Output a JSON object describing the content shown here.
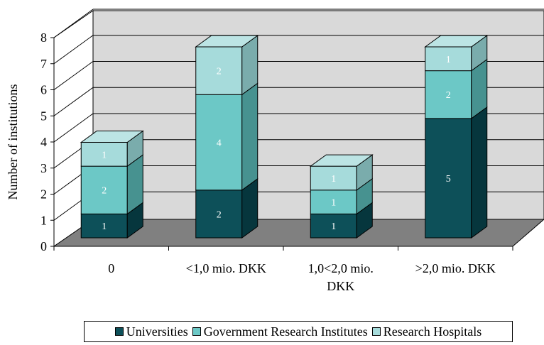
{
  "chart_data": {
    "type": "bar",
    "stacked": true,
    "three_d": true,
    "ylabel": "Number of institutions",
    "ylim": [
      0,
      8
    ],
    "yticks": [
      0,
      1,
      2,
      3,
      4,
      5,
      6,
      7,
      8
    ],
    "grid": true,
    "legend_position": "bottom",
    "categories": [
      [
        "0"
      ],
      [
        "<1,0 mio. DKK"
      ],
      [
        "1,0<2,0 mio.",
        "DKK"
      ],
      [
        ">2,0 mio. DKK"
      ]
    ],
    "series": [
      {
        "name": "Universities",
        "values": [
          1,
          2,
          1,
          5
        ],
        "color": "#0d5059",
        "side": "#06363d",
        "top": "#2e6e76"
      },
      {
        "name": "Government Research Institutes",
        "values": [
          2,
          4,
          1,
          2
        ],
        "color": "#6cc8c6",
        "side": "#479290",
        "top": "#8fd6d4"
      },
      {
        "name": "Research Hospitals",
        "values": [
          1,
          2,
          1,
          1
        ],
        "color": "#a6dbdb",
        "side": "#7aacac",
        "top": "#bce4e4"
      }
    ]
  }
}
